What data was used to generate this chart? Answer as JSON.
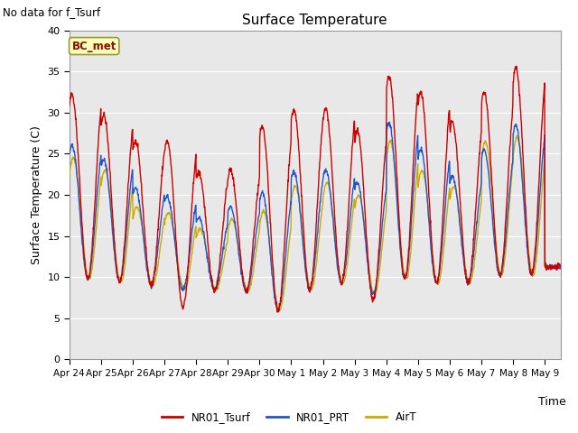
{
  "title": "Surface Temperature",
  "xlabel": "Time",
  "ylabel": "Surface Temperature (C)",
  "ylim": [
    0,
    40
  ],
  "yticks": [
    0,
    5,
    10,
    15,
    20,
    25,
    30,
    35,
    40
  ],
  "annotation_text": "No data for f_Tsurf",
  "bc_met_label": "BC_met",
  "legend_labels": [
    "NR01_Tsurf",
    "NR01_PRT",
    "AirT"
  ],
  "line_colors": [
    "#cc0000",
    "#2255cc",
    "#ccaa00"
  ],
  "bg_color": "#e8e8e8",
  "fig_bg_color": "#ffffff",
  "xtick_labels": [
    "Apr 24",
    "Apr 25",
    "Apr 26",
    "Apr 27",
    "Apr 28",
    "Apr 29",
    "Apr 30",
    "May 1",
    "May 2",
    "May 3",
    "May 4",
    "May 5",
    "May 6",
    "May 7",
    "May 8",
    "May 9"
  ],
  "tsurf_peaks_day": [
    32.2,
    29.7,
    26.5,
    26.5,
    22.7,
    23.0,
    28.3,
    30.3,
    30.5,
    27.7,
    34.5,
    32.5,
    28.8,
    32.5,
    35.5,
    11.2
  ],
  "tsurf_mins_day": [
    9.8,
    9.4,
    9.0,
    6.4,
    8.5,
    8.3,
    6.0,
    8.5,
    9.3,
    7.2,
    9.8,
    9.2,
    9.3,
    10.2,
    10.3,
    11.2
  ],
  "prt_peaks_day": [
    26.0,
    24.3,
    20.8,
    19.8,
    17.2,
    18.5,
    20.3,
    22.8,
    23.0,
    21.5,
    28.7,
    25.5,
    22.3,
    25.5,
    28.5,
    11.2
  ],
  "prt_mins_day": [
    9.8,
    9.4,
    9.0,
    8.5,
    8.5,
    8.3,
    6.0,
    8.5,
    9.3,
    8.0,
    9.8,
    9.2,
    9.3,
    10.2,
    10.3,
    11.2
  ],
  "airt_peaks_day": [
    24.5,
    23.0,
    18.5,
    17.8,
    15.8,
    17.0,
    18.0,
    21.0,
    21.5,
    20.0,
    26.5,
    23.0,
    21.0,
    26.5,
    27.0,
    11.2
  ],
  "airt_mins_day": [
    9.8,
    9.4,
    9.0,
    8.5,
    8.5,
    8.3,
    6.0,
    8.5,
    9.3,
    8.0,
    9.8,
    9.2,
    9.3,
    10.2,
    10.3,
    11.2
  ],
  "total_hours": 372,
  "phase_peak_tsurf": 14.0,
  "phase_peak_prt": 14.0,
  "phase_peak_airt": 15.0
}
